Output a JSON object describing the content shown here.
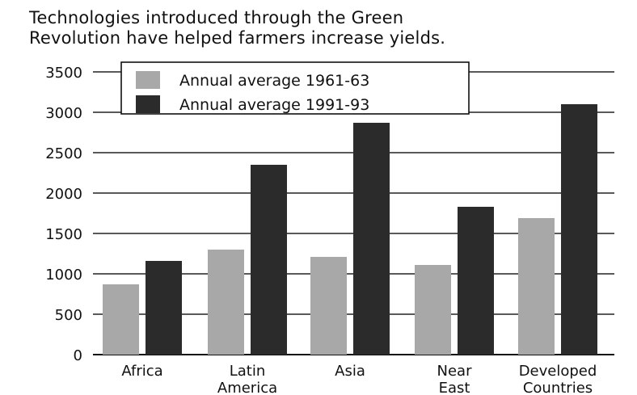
{
  "chart_data": {
    "type": "bar",
    "title_lines": [
      "Technologies introduced through the Green",
      "Revolution have helped farmers increase yields."
    ],
    "xlabel": "",
    "ylabel": "",
    "categories": [
      [
        "Africa"
      ],
      [
        "Latin",
        "America"
      ],
      [
        "Asia"
      ],
      [
        "Near",
        "East"
      ],
      [
        "Developed",
        "Countries"
      ]
    ],
    "series": [
      {
        "name": "Annual average 1961-63",
        "values": [
          870,
          1300,
          1210,
          1110,
          1690
        ],
        "color": "#a8a8a8"
      },
      {
        "name": "Annual average 1991-93",
        "values": [
          1160,
          2350,
          2870,
          1830,
          3100
        ],
        "color": "#2b2b2b"
      }
    ],
    "ylim": [
      0,
      3500
    ],
    "yticks": [
      "0",
      "500",
      "1000",
      "1500",
      "2000",
      "2500",
      "3000",
      "3500"
    ],
    "grid": "horizontal",
    "legend_position": "top-left"
  }
}
